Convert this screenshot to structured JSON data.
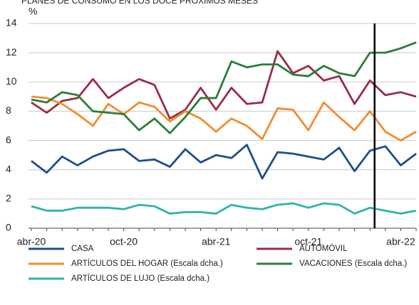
{
  "chart_data": {
    "type": "line",
    "title": "PLANES DE CONSUMO EN LOS DOCE PRÓXIMOS MESES",
    "y_label": "%",
    "categories": [
      "abr-20",
      null,
      null,
      null,
      null,
      null,
      "oct-20",
      null,
      null,
      null,
      null,
      null,
      "abr-21",
      null,
      null,
      null,
      null,
      null,
      "oct-21",
      null,
      null,
      null,
      null,
      null,
      "abr-22",
      null
    ],
    "series": [
      {
        "name": "CASA",
        "color": "#1c4f8a",
        "values": [
          4.6,
          3.8,
          4.9,
          4.3,
          4.9,
          5.3,
          5.4,
          4.6,
          4.7,
          4.2,
          5.4,
          4.5,
          5.0,
          4.8,
          5.7,
          3.4,
          5.2,
          5.1,
          4.9,
          4.7,
          5.5,
          3.9,
          5.3,
          5.6,
          4.3,
          5.1
        ]
      },
      {
        "name": "AUTOMÓVIL",
        "color": "#9b2b47",
        "values": [
          8.6,
          7.9,
          8.7,
          8.9,
          10.2,
          8.9,
          9.6,
          10.2,
          9.8,
          7.5,
          8.1,
          9.6,
          8.1,
          9.6,
          8.5,
          8.6,
          12.1,
          10.6,
          11.1,
          10.1,
          10.4,
          8.5,
          10.1,
          9.1,
          9.3,
          9.0
        ]
      },
      {
        "name": "ARTÍCULOS DEL HOGAR (Escala dcha.)",
        "color": "#f28c30",
        "values": [
          9.0,
          8.9,
          8.5,
          7.8,
          7.0,
          8.5,
          7.8,
          8.6,
          8.3,
          7.3,
          8.0,
          7.5,
          6.6,
          7.5,
          7.0,
          6.1,
          8.2,
          8.1,
          6.7,
          8.6,
          7.6,
          6.7,
          8.0,
          6.6,
          6.0,
          6.6
        ]
      },
      {
        "name": "VACACIONES  (Escala dcha.)",
        "color": "#2a7d3a",
        "values": [
          8.8,
          8.6,
          9.3,
          9.1,
          8.0,
          7.9,
          7.8,
          6.7,
          7.5,
          6.5,
          7.6,
          8.9,
          8.9,
          11.4,
          11.0,
          11.2,
          11.2,
          10.5,
          10.4,
          11.1,
          10.6,
          10.4,
          12.0,
          12.0,
          12.3,
          12.7
        ]
      },
      {
        "name": "ARTÍCULOS DE LUJO  (Escala dcha.)",
        "color": "#2bb5a8",
        "values": [
          1.5,
          1.2,
          1.2,
          1.4,
          1.4,
          1.4,
          1.3,
          1.6,
          1.5,
          1.0,
          1.1,
          1.1,
          1.0,
          1.6,
          1.4,
          1.3,
          1.6,
          1.7,
          1.4,
          1.7,
          1.6,
          1.0,
          1.4,
          1.2,
          1.0,
          1.2
        ]
      }
    ],
    "ylim": [
      0,
      14
    ],
    "yticks": [
      0,
      2,
      4,
      6,
      8,
      10,
      12,
      14
    ],
    "grid": true
  }
}
